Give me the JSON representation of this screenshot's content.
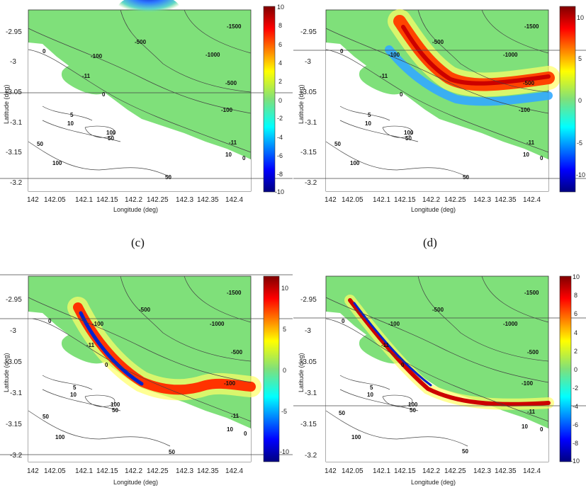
{
  "figures": [
    {
      "id": "a",
      "xticks": [
        "142",
        "142.05",
        "142.1",
        "142.15",
        "142.2",
        "142.25",
        "142.3",
        "142.35",
        "142.4"
      ],
      "yticks": [
        "-2.95",
        "-3",
        "-3.05",
        "-3.1",
        "-3.15",
        "-3.2"
      ],
      "xlabel": "Longitude (deg)",
      "ylabel": "Latitude (deg)",
      "cbar_ticks": [
        "10",
        "8",
        "6",
        "4",
        "2",
        "0",
        "-2",
        "-4",
        "-6",
        "-8",
        "-10"
      ],
      "contour_labels": [
        "-1500",
        "-500",
        "-1000",
        "-100",
        "0",
        "-11",
        "-500",
        "0",
        "-100",
        "5",
        "10",
        "100",
        "50",
        "50",
        "100",
        "-11",
        "10",
        "0",
        "50"
      ]
    },
    {
      "id": "b",
      "xticks": [
        "142",
        "142.05",
        "142.1",
        "142.15",
        "142.2",
        "142.25",
        "142.3",
        "142.35",
        "142.4"
      ],
      "yticks": [
        "-2.95",
        "-3",
        "-3.05",
        "-3.1",
        "-3.15",
        "-3.2"
      ],
      "xlabel": "Longitude (deg)",
      "ylabel": "Latitude (deg)",
      "cbar_ticks": [
        "10",
        "5",
        "0",
        "-5",
        "-10"
      ],
      "contour_labels": [
        "-1500",
        "-500",
        "-1000",
        "-100",
        "0",
        "-11",
        "-500",
        "0",
        "-100",
        "5",
        "10",
        "100",
        "50",
        "50",
        "100",
        "-11",
        "10",
        "0",
        "50"
      ]
    },
    {
      "id": "c",
      "xticks": [
        "142",
        "142.05",
        "142.1",
        "142.15",
        "142.2",
        "142.25",
        "142.3",
        "142.35",
        "142.4"
      ],
      "yticks": [
        "-2.95",
        "-3",
        "-3.05",
        "-3.1",
        "-3.15",
        "-3.2"
      ],
      "xlabel": "Longitude (deg)",
      "ylabel": "Latitude (deg)",
      "cbar_ticks": [
        "10",
        "5",
        "0",
        "-5",
        "-10"
      ],
      "contour_labels": [
        "-1500",
        "-500",
        "-1000",
        "-100",
        "0",
        "-11",
        "-500",
        "0",
        "-100",
        "5",
        "10",
        "100",
        "50",
        "50",
        "100",
        "-11",
        "10",
        "0",
        "50"
      ]
    },
    {
      "id": "d",
      "xticks": [
        "142",
        "142.05",
        "142.1",
        "142.15",
        "142.2",
        "142.25",
        "142.3",
        "142.35",
        "142.4"
      ],
      "yticks": [
        "-2.95",
        "-3",
        "-3.05",
        "-3.1",
        "-3.15",
        "-3.2"
      ],
      "xlabel": "Longitude (deg)",
      "ylabel": "Latitude (deg)",
      "cbar_ticks": [
        "10",
        "8",
        "6",
        "4",
        "2",
        "0",
        "-2",
        "-4",
        "-6",
        "-8",
        "-10"
      ],
      "contour_labels": [
        "-1500",
        "-500",
        "-1000",
        "-100",
        "0",
        "-11",
        "-500",
        "0",
        "-100",
        "5",
        "10",
        "100",
        "50",
        "50",
        "100",
        "-11",
        "10",
        "0",
        "50"
      ]
    }
  ],
  "captions": {
    "c": "(c)",
    "d": "(d)"
  },
  "colors": {
    "ocean_zero": "#7fe07a",
    "land": "#ffffff",
    "positive_max": "#8b0000",
    "negative_max": "#00008b"
  }
}
